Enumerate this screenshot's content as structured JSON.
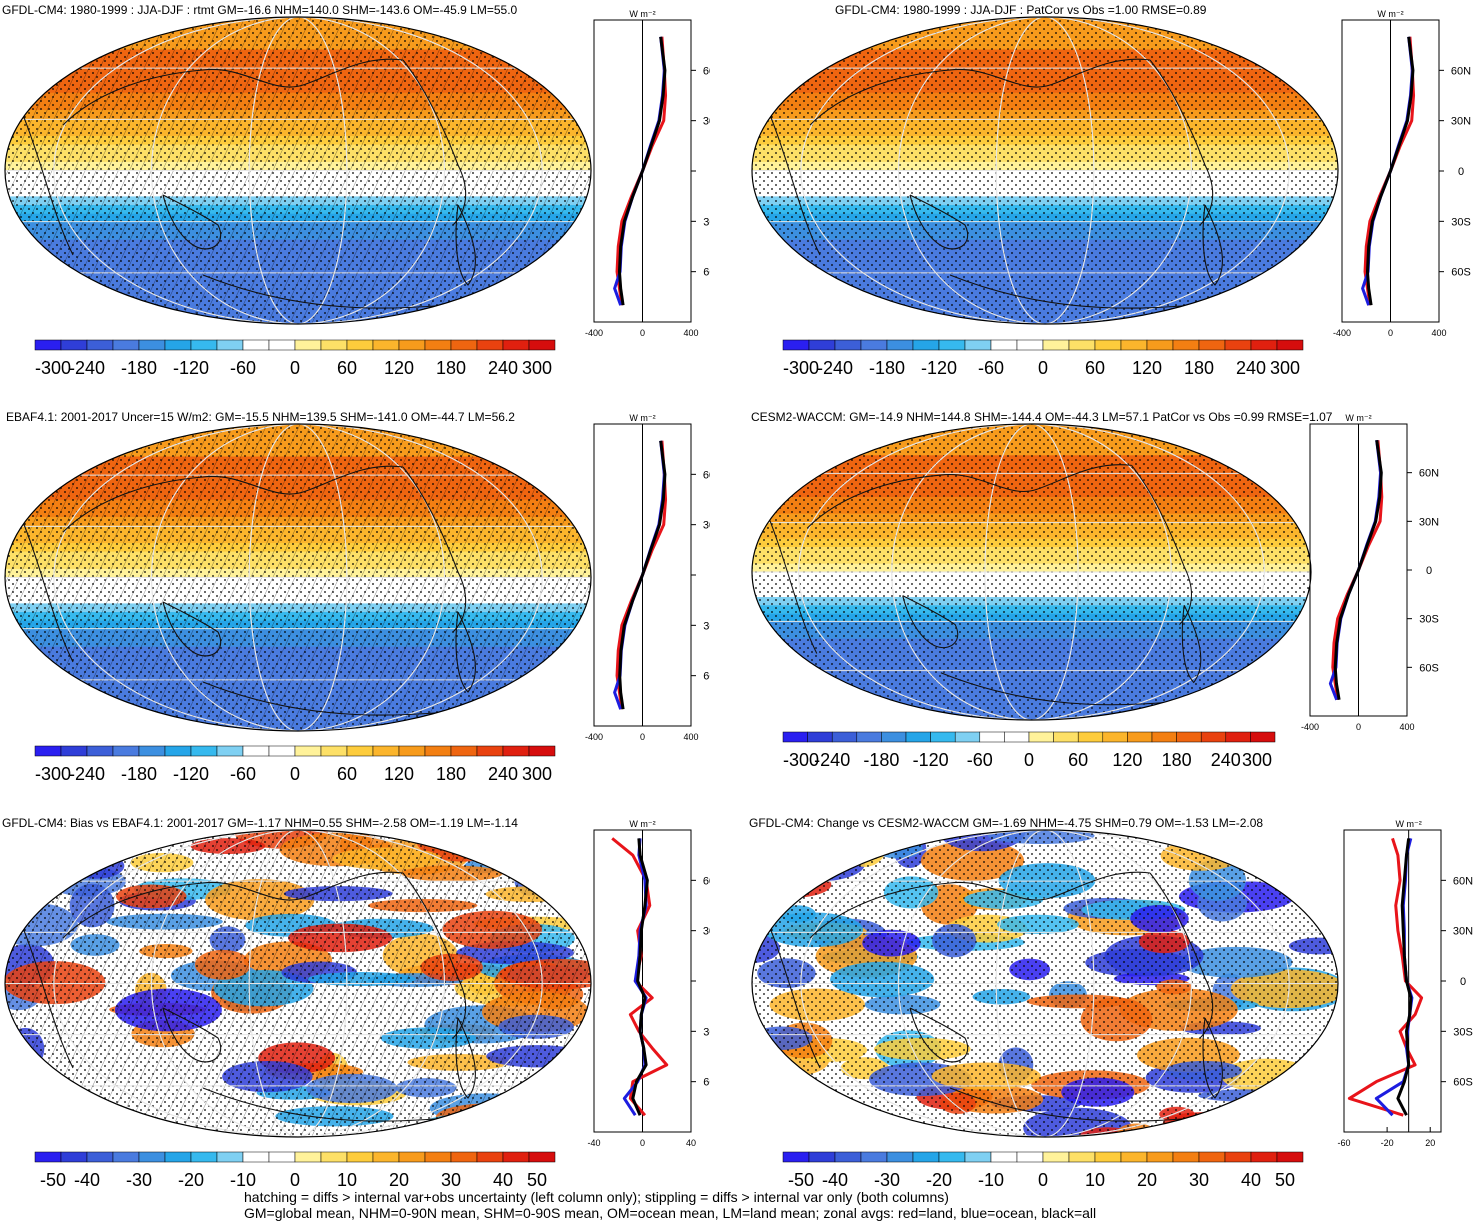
{
  "panels": [
    {
      "id": "p1",
      "title": "GFDL-CM4: 1980-1999 : JJA-DJF : rtmt GM=-16.6 NHM=140.0 SHM=-143.6 OM=-45.9 LM=55.0",
      "kind": "abs",
      "hatch": true
    },
    {
      "id": "p2",
      "title": "GFDL-CM4: 1980-1999 : JJA-DJF : PatCor vs Obs =1.00 RMSE=0.89",
      "kind": "abs",
      "hatch": false
    },
    {
      "id": "p3",
      "title": "EBAF4.1: 2001-2017 Uncer=15 W/m2: GM=-15.5 NHM=139.5 SHM=-141.0 OM=-44.7 LM=56.2",
      "kind": "abs",
      "hatch": true
    },
    {
      "id": "p4",
      "title": "CESM2-WACCM: GM=-14.9 NHM=144.8 SHM=-144.4 OM=-44.3 LM=57.1 PatCor vs Obs =0.99 RMSE=1.07",
      "kind": "abs",
      "hatch": false
    },
    {
      "id": "p5",
      "title": "GFDL-CM4: Bias vs EBAF4.1: 2001-2017 GM=-1.17 NHM=0.55 SHM=-2.58 OM=-1.19 LM=-1.14",
      "kind": "diff",
      "hatch": true
    },
    {
      "id": "p6",
      "title": "GFDL-CM4: Change vs CESM2-WACCM GM=-1.69 NHM=-4.75 SHM=0.79 OM=-1.53 LM=-2.08",
      "kind": "diff",
      "hatch": false
    }
  ],
  "units": "W m⁻²",
  "colorbar_abs": {
    "ticks": [
      "-300",
      "-240",
      "-180",
      "-120",
      "-60",
      "0",
      "60",
      "120",
      "180",
      "240",
      "300"
    ],
    "colors": [
      "#2a1ff0",
      "#2f3ed8",
      "#3c5fd8",
      "#4a7bdf",
      "#3c8fe0",
      "#25a5e8",
      "#36b9ee",
      "#7fd0f2",
      "#ffffff",
      "#ffffff",
      "#fff29a",
      "#fde067",
      "#fdcc3c",
      "#fbb52c",
      "#f79b1c",
      "#f37f12",
      "#ef6510",
      "#e9420f",
      "#e0200f",
      "#d60d0d"
    ]
  },
  "colorbar_diff": {
    "ticks": [
      "-50",
      "-40",
      "-30",
      "-20",
      "-10",
      "0",
      "10",
      "20",
      "30",
      "40",
      "50"
    ],
    "colors": [
      "#2a1ff0",
      "#2f3ed8",
      "#3c5fd8",
      "#4a7bdf",
      "#3c8fe0",
      "#25a5e8",
      "#36b9ee",
      "#7fd0f2",
      "#ffffff",
      "#ffffff",
      "#fff29a",
      "#fde067",
      "#fdcc3c",
      "#fbb52c",
      "#f79b1c",
      "#f37f12",
      "#ef6510",
      "#e9420f",
      "#e0200f",
      "#d60d0d"
    ]
  },
  "zonal_axis": {
    "lat_ticks": [
      "60N",
      "30N",
      "0",
      "30S",
      "60S"
    ],
    "abs_xticks": [
      "-400",
      "0",
      "400"
    ],
    "diff_left_xticks": [
      "-40",
      "0",
      "40"
    ],
    "diff_right_xticks": [
      "-60",
      "-20",
      "20"
    ]
  },
  "footnotes": [
    "hatching = diffs > internal var+obs uncertainty (left column only); stippling = diffs > internal var only (both columns)",
    "GM=global mean, NHM=0-90N mean, SHM=0-90S mean, OM=ocean mean, LM=land mean; zonal avgs: red=land, blue=ocean, black=all"
  ],
  "chart_data": [
    {
      "type": "heatmap",
      "panel": "p1",
      "projection": "Robinson",
      "variable": "rtmt",
      "stats": {
        "GM": -16.6,
        "NHM": 140.0,
        "SHM": -143.6,
        "OM": -45.9,
        "LM": 55.0
      },
      "zonal": {
        "lat": [
          80,
          60,
          45,
          30,
          15,
          0,
          -15,
          -30,
          -45,
          -60,
          -70,
          -80
        ],
        "all": [
          150,
          185,
          170,
          140,
          70,
          0,
          -80,
          -150,
          -180,
          -190,
          -180,
          -160
        ],
        "land": [
          160,
          180,
          190,
          175,
          80,
          0,
          -90,
          -170,
          -200,
          -210,
          -190,
          -170
        ],
        "ocean": [
          150,
          180,
          165,
          135,
          65,
          0,
          -80,
          -145,
          -175,
          -185,
          -230,
          -180
        ]
      }
    },
    {
      "type": "heatmap",
      "panel": "p2",
      "projection": "Robinson",
      "stats": {
        "PatCor": 1.0,
        "RMSE": 0.89
      },
      "zonal": {
        "lat": [
          80,
          60,
          45,
          30,
          15,
          0,
          -15,
          -30,
          -45,
          -60,
          -70,
          -80
        ],
        "all": [
          150,
          185,
          170,
          140,
          70,
          0,
          -80,
          -150,
          -180,
          -190,
          -180,
          -160
        ],
        "land": [
          160,
          180,
          190,
          175,
          80,
          0,
          -90,
          -170,
          -200,
          -210,
          -190,
          -170
        ],
        "ocean": [
          150,
          180,
          165,
          135,
          65,
          0,
          -80,
          -145,
          -175,
          -185,
          -230,
          -180
        ]
      }
    },
    {
      "type": "heatmap",
      "panel": "p3",
      "projection": "Robinson",
      "stats": {
        "GM": -15.5,
        "NHM": 139.5,
        "SHM": -141.0,
        "OM": -44.7,
        "LM": 56.2,
        "Uncer": 15
      },
      "zonal": {
        "lat": [
          80,
          60,
          45,
          30,
          15,
          0,
          -15,
          -30,
          -45,
          -60,
          -70,
          -80
        ],
        "all": [
          150,
          185,
          172,
          140,
          68,
          0,
          -80,
          -150,
          -178,
          -188,
          -180,
          -160
        ],
        "land": [
          160,
          180,
          190,
          175,
          80,
          0,
          -90,
          -170,
          -200,
          -210,
          -190,
          -170
        ],
        "ocean": [
          150,
          180,
          165,
          135,
          65,
          0,
          -80,
          -145,
          -175,
          -185,
          -230,
          -180
        ]
      }
    },
    {
      "type": "heatmap",
      "panel": "p4",
      "projection": "Robinson",
      "stats": {
        "GM": -14.9,
        "NHM": 144.8,
        "SHM": -144.4,
        "OM": -44.3,
        "LM": 57.1,
        "PatCor": 0.99,
        "RMSE": 1.07
      },
      "zonal": {
        "lat": [
          80,
          60,
          45,
          30,
          15,
          0,
          -15,
          -30,
          -45,
          -60,
          -70,
          -80
        ],
        "all": [
          150,
          188,
          175,
          142,
          70,
          0,
          -82,
          -150,
          -180,
          -192,
          -182,
          -160
        ],
        "land": [
          160,
          182,
          192,
          178,
          82,
          0,
          -92,
          -172,
          -202,
          -212,
          -192,
          -170
        ],
        "ocean": [
          150,
          182,
          168,
          138,
          66,
          0,
          -82,
          -146,
          -176,
          -186,
          -232,
          -180
        ]
      }
    },
    {
      "type": "heatmap",
      "panel": "p5",
      "projection": "Robinson",
      "stats": {
        "GM": -1.17,
        "NHM": 0.55,
        "SHM": -2.58,
        "OM": -1.19,
        "LM": -1.14
      },
      "zonal": {
        "lat": [
          85,
          75,
          60,
          45,
          30,
          15,
          0,
          -10,
          -20,
          -30,
          -40,
          -50,
          -60,
          -70,
          -80
        ],
        "all": [
          -3,
          -2,
          4,
          2,
          -1,
          -2,
          -4,
          2,
          -1,
          -2,
          1,
          3,
          -5,
          -8,
          -2
        ],
        "land": [
          -25,
          -8,
          3,
          6,
          -4,
          -1,
          -6,
          8,
          -10,
          -3,
          8,
          20,
          -8,
          -10,
          2
        ],
        "ocean": [
          -2,
          -3,
          2,
          3,
          -2,
          -3,
          -6,
          3,
          -1,
          -2,
          1,
          2,
          -4,
          -15,
          -6
        ]
      }
    },
    {
      "type": "heatmap",
      "panel": "p6",
      "projection": "Robinson",
      "stats": {
        "GM": -1.69,
        "NHM": -4.75,
        "SHM": 0.79,
        "OM": -1.53,
        "LM": -2.08
      },
      "zonal": {
        "lat": [
          85,
          75,
          60,
          45,
          30,
          15,
          0,
          -10,
          -20,
          -30,
          -40,
          -50,
          -60,
          -70,
          -80
        ],
        "all": [
          0,
          -2,
          -4,
          -6,
          -5,
          -4,
          -2,
          2,
          1,
          -2,
          -1,
          0,
          -4,
          -10,
          -2
        ],
        "land": [
          -15,
          -10,
          -8,
          -12,
          -10,
          -6,
          -3,
          12,
          6,
          -8,
          -2,
          6,
          -30,
          -55,
          -5
        ],
        "ocean": [
          2,
          -2,
          -3,
          -5,
          -4,
          -4,
          -2,
          3,
          1,
          -1,
          -2,
          0,
          -5,
          -30,
          -15
        ]
      }
    }
  ]
}
